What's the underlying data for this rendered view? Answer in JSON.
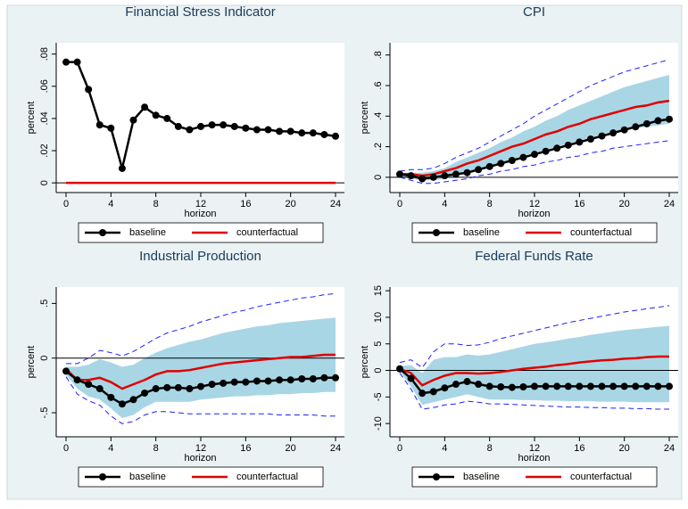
{
  "chart_data": [
    {
      "type": "line",
      "title": "Financial Stress Indicator",
      "x_label": "horizon",
      "y_label": "percent",
      "x": [
        0,
        1,
        2,
        3,
        4,
        5,
        6,
        7,
        8,
        9,
        10,
        11,
        12,
        13,
        14,
        15,
        16,
        17,
        18,
        19,
        20,
        21,
        22,
        23,
        24
      ],
      "xlim": [
        0,
        24
      ],
      "xticks": [
        0,
        4,
        8,
        12,
        16,
        20,
        24
      ],
      "ylim": [
        -0.006,
        0.087
      ],
      "yticks": [
        0,
        {
          "value": 0.02,
          "label": ".02"
        },
        {
          "value": 0.04,
          "label": ".04"
        },
        {
          "value": 0.06,
          "label": ".06"
        },
        {
          "value": 0.08,
          "label": ".08"
        }
      ],
      "reference_line": 0,
      "series": [
        {
          "name": "baseline",
          "color": "#000000",
          "marker": true,
          "values": [
            0.075,
            0.075,
            0.058,
            0.036,
            0.034,
            0.009,
            0.039,
            0.047,
            0.042,
            0.04,
            0.035,
            0.033,
            0.035,
            0.036,
            0.036,
            0.035,
            0.034,
            0.033,
            0.033,
            0.032,
            0.032,
            0.031,
            0.031,
            0.03,
            0.029
          ]
        },
        {
          "name": "counterfactual",
          "color": "#e00000",
          "marker": false,
          "values": [
            0,
            0,
            0,
            0,
            0,
            0,
            0,
            0,
            0,
            0,
            0,
            0,
            0,
            0,
            0,
            0,
            0,
            0,
            0,
            0,
            0,
            0,
            0,
            0,
            0
          ]
        }
      ]
    },
    {
      "type": "line",
      "title": "CPI",
      "x_label": "horizon",
      "y_label": "percent",
      "x": [
        0,
        1,
        2,
        3,
        4,
        5,
        6,
        7,
        8,
        9,
        10,
        11,
        12,
        13,
        14,
        15,
        16,
        17,
        18,
        19,
        20,
        21,
        22,
        23,
        24
      ],
      "xlim": [
        0,
        24
      ],
      "xticks": [
        0,
        4,
        8,
        12,
        16,
        20,
        24
      ],
      "ylim": [
        -0.1,
        0.88
      ],
      "yticks": [
        0,
        {
          "value": 0.2,
          "label": ".2"
        },
        {
          "value": 0.4,
          "label": ".4"
        },
        {
          "value": 0.6,
          "label": ".6"
        },
        {
          "value": 0.8,
          "label": ".8"
        }
      ],
      "reference_line": 0,
      "band": {
        "color": "#a9d6e5",
        "upper": [
          0.03,
          0.03,
          0.03,
          0.04,
          0.06,
          0.1,
          0.13,
          0.16,
          0.19,
          0.23,
          0.26,
          0.3,
          0.33,
          0.37,
          0.4,
          0.44,
          0.47,
          0.5,
          0.53,
          0.56,
          0.59,
          0.61,
          0.63,
          0.65,
          0.67
        ],
        "lower": [
          0.0,
          -0.01,
          -0.02,
          -0.02,
          -0.01,
          0.01,
          0.03,
          0.05,
          0.07,
          0.09,
          0.12,
          0.14,
          0.16,
          0.18,
          0.2,
          0.22,
          0.24,
          0.26,
          0.28,
          0.3,
          0.31,
          0.32,
          0.33,
          0.34,
          0.35
        ]
      },
      "dashed_band": {
        "color": "#1f1fff",
        "upper": [
          0.04,
          0.05,
          0.05,
          0.06,
          0.09,
          0.13,
          0.16,
          0.19,
          0.23,
          0.27,
          0.31,
          0.35,
          0.4,
          0.44,
          0.48,
          0.52,
          0.56,
          0.6,
          0.63,
          0.66,
          0.69,
          0.71,
          0.73,
          0.75,
          0.77
        ],
        "lower": [
          0,
          -0.02,
          -0.04,
          -0.04,
          -0.03,
          -0.02,
          -0.01,
          0.01,
          0.02,
          0.04,
          0.05,
          0.07,
          0.08,
          0.1,
          0.11,
          0.13,
          0.14,
          0.16,
          0.17,
          0.19,
          0.2,
          0.21,
          0.22,
          0.23,
          0.24
        ]
      },
      "series": [
        {
          "name": "baseline",
          "color": "#000000",
          "marker": true,
          "values": [
            0.02,
            0.01,
            -0.01,
            0,
            0.01,
            0.02,
            0.03,
            0.05,
            0.07,
            0.09,
            0.11,
            0.13,
            0.15,
            0.17,
            0.19,
            0.21,
            0.23,
            0.25,
            0.27,
            0.29,
            0.31,
            0.33,
            0.35,
            0.37,
            0.38
          ]
        },
        {
          "name": "counterfactual",
          "color": "#e00000",
          "marker": false,
          "values": [
            0.02,
            0.02,
            0.01,
            0.02,
            0.04,
            0.06,
            0.09,
            0.11,
            0.14,
            0.17,
            0.2,
            0.22,
            0.25,
            0.28,
            0.3,
            0.33,
            0.35,
            0.38,
            0.4,
            0.42,
            0.44,
            0.46,
            0.47,
            0.49,
            0.5
          ]
        }
      ]
    },
    {
      "type": "line",
      "title": "Industrial Production",
      "x_label": "horizon",
      "y_label": "percent",
      "x": [
        0,
        1,
        2,
        3,
        4,
        5,
        6,
        7,
        8,
        9,
        10,
        11,
        12,
        13,
        14,
        15,
        16,
        17,
        18,
        19,
        20,
        21,
        22,
        23,
        24
      ],
      "xlim": [
        0,
        24
      ],
      "xticks": [
        0,
        4,
        8,
        12,
        16,
        20,
        24
      ],
      "ylim": [
        -0.72,
        0.65
      ],
      "yticks": [
        {
          "value": -0.5,
          "label": "-.5"
        },
        0,
        {
          "value": 0.5,
          "label": ".5"
        }
      ],
      "reference_line": 0,
      "band": {
        "color": "#a9d6e5",
        "upper": [
          -0.08,
          -0.08,
          -0.06,
          -0.01,
          -0.04,
          -0.08,
          -0.06,
          0.0,
          0.05,
          0.09,
          0.12,
          0.15,
          0.17,
          0.2,
          0.23,
          0.25,
          0.27,
          0.29,
          0.3,
          0.32,
          0.33,
          0.34,
          0.35,
          0.36,
          0.37
        ],
        "lower": [
          -0.15,
          -0.28,
          -0.35,
          -0.38,
          -0.46,
          -0.55,
          -0.52,
          -0.45,
          -0.4,
          -0.4,
          -0.4,
          -0.4,
          -0.38,
          -0.37,
          -0.36,
          -0.35,
          -0.35,
          -0.34,
          -0.34,
          -0.33,
          -0.33,
          -0.32,
          -0.32,
          -0.31,
          -0.31
        ]
      },
      "dashed_band": {
        "color": "#1f1fff",
        "upper": [
          -0.05,
          -0.05,
          0.0,
          0.07,
          0.05,
          0.02,
          0.06,
          0.12,
          0.18,
          0.23,
          0.26,
          0.29,
          0.33,
          0.36,
          0.39,
          0.42,
          0.44,
          0.47,
          0.49,
          0.51,
          0.53,
          0.55,
          0.56,
          0.58,
          0.59
        ],
        "lower": [
          -0.17,
          -0.33,
          -0.39,
          -0.43,
          -0.53,
          -0.6,
          -0.58,
          -0.52,
          -0.49,
          -0.49,
          -0.5,
          -0.51,
          -0.51,
          -0.51,
          -0.51,
          -0.51,
          -0.51,
          -0.51,
          -0.51,
          -0.52,
          -0.52,
          -0.52,
          -0.52,
          -0.53,
          -0.53
        ]
      },
      "series": [
        {
          "name": "baseline",
          "color": "#000000",
          "marker": true,
          "values": [
            -0.12,
            -0.2,
            -0.24,
            -0.28,
            -0.36,
            -0.42,
            -0.38,
            -0.32,
            -0.28,
            -0.27,
            -0.27,
            -0.28,
            -0.26,
            -0.24,
            -0.23,
            -0.22,
            -0.22,
            -0.21,
            -0.21,
            -0.2,
            -0.2,
            -0.19,
            -0.19,
            -0.18,
            -0.18
          ]
        },
        {
          "name": "counterfactual",
          "color": "#e00000",
          "marker": false,
          "values": [
            -0.1,
            -0.2,
            -0.2,
            -0.18,
            -0.22,
            -0.28,
            -0.24,
            -0.2,
            -0.15,
            -0.12,
            -0.12,
            -0.11,
            -0.09,
            -0.07,
            -0.05,
            -0.04,
            -0.03,
            -0.02,
            -0.01,
            0,
            0.01,
            0.01,
            0.02,
            0.03,
            0.03
          ]
        }
      ]
    },
    {
      "type": "line",
      "title": "Federal Funds Rate",
      "x_label": "horizon",
      "y_label": "percent",
      "x": [
        0,
        1,
        2,
        3,
        4,
        5,
        6,
        7,
        8,
        9,
        10,
        11,
        12,
        13,
        14,
        15,
        16,
        17,
        18,
        19,
        20,
        21,
        22,
        23,
        24
      ],
      "xlim": [
        0,
        24
      ],
      "xticks": [
        0,
        4,
        8,
        12,
        16,
        20,
        24
      ],
      "ylim": [
        -12.5,
        15.7
      ],
      "yticks": [
        -10,
        -5,
        0,
        5,
        10,
        15
      ],
      "reference_line": 0,
      "band": {
        "color": "#a9d6e5",
        "upper": [
          0.8,
          1,
          -0.5,
          2,
          2.5,
          2.5,
          3,
          2.8,
          3,
          3.5,
          4,
          4.5,
          5,
          5.3,
          5.6,
          6,
          6.3,
          6.7,
          7,
          7.3,
          7.6,
          7.8,
          8,
          8.2,
          8.4
        ],
        "lower": [
          -0.2,
          -3,
          -6.5,
          -6,
          -5.5,
          -5,
          -4.5,
          -5,
          -5.5,
          -5.5,
          -5.5,
          -5.6,
          -5.6,
          -5.7,
          -5.7,
          -5.8,
          -5.8,
          -5.8,
          -5.9,
          -5.9,
          -5.9,
          -6,
          -6,
          -6,
          -6
        ]
      },
      "dashed_band": {
        "color": "#1f1fff",
        "upper": [
          1.5,
          2,
          0.5,
          3.5,
          5,
          5,
          4.7,
          4.8,
          5.3,
          6,
          6.5,
          7,
          7.5,
          8,
          8.5,
          9,
          9.4,
          9.8,
          10.2,
          10.6,
          11,
          11.3,
          11.6,
          11.9,
          12.2
        ],
        "lower": [
          -0.5,
          -3.5,
          -7.3,
          -7,
          -6.5,
          -6.3,
          -5.8,
          -6,
          -6.3,
          -6.3,
          -6.4,
          -6.5,
          -6.6,
          -6.7,
          -6.8,
          -6.9,
          -6.9,
          -7,
          -7,
          -7.1,
          -7.1,
          -7.2,
          -7.2,
          -7.3,
          -7.3
        ]
      },
      "series": [
        {
          "name": "baseline",
          "color": "#000000",
          "marker": true,
          "values": [
            0.3,
            -1.5,
            -4.3,
            -4,
            -3.3,
            -2.6,
            -2.1,
            -2.6,
            -3,
            -3.1,
            -3.2,
            -3.1,
            -3,
            -3,
            -3,
            -3,
            -3,
            -3,
            -3,
            -3,
            -3,
            -3,
            -3,
            -3,
            -3
          ]
        },
        {
          "name": "counterfactual",
          "color": "#e00000",
          "marker": false,
          "values": [
            0.3,
            -0.5,
            -2.8,
            -1.8,
            -1,
            -0.5,
            -0.5,
            -0.6,
            -0.5,
            -0.3,
            0,
            0.3,
            0.5,
            0.7,
            1,
            1.2,
            1.5,
            1.7,
            1.9,
            2,
            2.2,
            2.3,
            2.5,
            2.6,
            2.6
          ]
        }
      ]
    }
  ]
}
